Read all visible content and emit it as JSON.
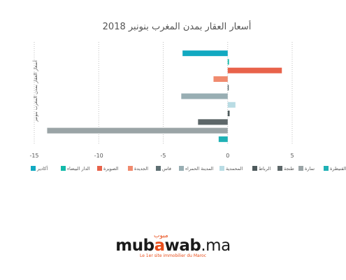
{
  "chart_data": {
    "type": "bar",
    "orientation": "horizontal",
    "title": "أسعار العقار بمدن المغرب بنونبر 2018",
    "ylabel": "أسعار العقار بمدن المغرب بنونبر",
    "xlim": [
      -15,
      5
    ],
    "xticks": [
      -15,
      -10,
      -5,
      0,
      5
    ],
    "grid": "vertical-dotted",
    "legend_position": "bottom",
    "series": [
      {
        "name": "أكادير",
        "value": -3.5,
        "color": "#12a9c1"
      },
      {
        "name": "الدار البيضاء",
        "value": 0.1,
        "color": "#13b9a9"
      },
      {
        "name": "الصويرة",
        "value": 4.2,
        "color": "#e8624a"
      },
      {
        "name": "الجديدة",
        "value": -1.1,
        "color": "#f08a6e"
      },
      {
        "name": "فاس",
        "value": 0.0,
        "color": "#5e6f72"
      },
      {
        "name": "المدينة الحمراء",
        "value": -3.6,
        "color": "#98aeb3"
      },
      {
        "name": "المحمدية",
        "value": 0.6,
        "color": "#b9dce4"
      },
      {
        "name": "الرباط",
        "value": 0.15,
        "color": "#4e5a5c"
      },
      {
        "name": "طنجة",
        "value": -2.3,
        "color": "#5d6769"
      },
      {
        "name": "تمارة",
        "value": -14.0,
        "color": "#9aa4a6"
      },
      {
        "name": "القنيطرة",
        "value": -0.7,
        "color": "#1fb1b5"
      }
    ]
  },
  "brand": {
    "accent": "مبوب",
    "name_part1": "mub",
    "name_part2": "a",
    "name_part3": "wab",
    "name_suffix": ".ma",
    "tagline": "Le 1er site immobilier du Maroc"
  }
}
